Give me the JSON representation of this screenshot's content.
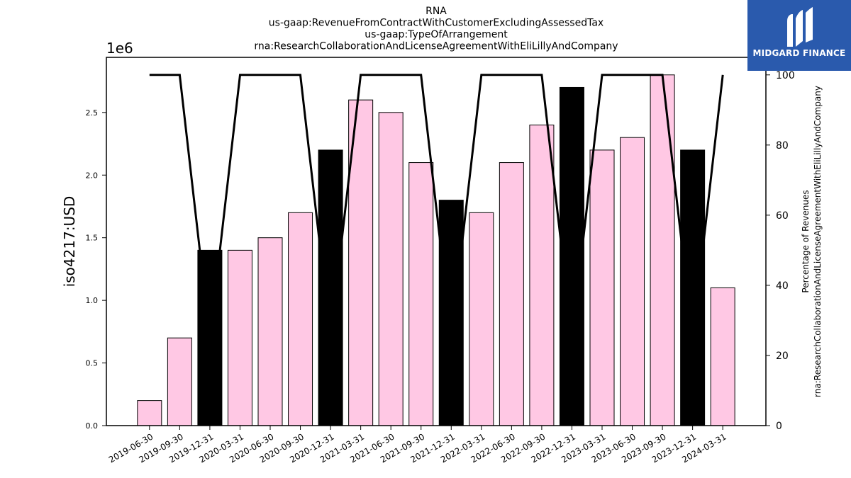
{
  "logo": {
    "text": "MIDGARD FINANCE"
  },
  "chart_data": {
    "type": "bar",
    "title_lines": [
      "RNA",
      "us-gaap:RevenueFromContractWithCustomerExcludingAssessedTax",
      "us-gaap:TypeOfArrangement",
      "rna:ResearchCollaborationAndLicenseAgreementWithEliLillyAndCompany"
    ],
    "ylabel": "iso4217:USD",
    "y_multiplier": "1e6",
    "y2label_lines": [
      "Percentage of Revenues",
      "rna:ResearchCollaborationAndLicenseAgreementWithEliLillyAndCompany"
    ],
    "ylim": [
      0,
      2.94
    ],
    "y_ticks": [
      "0.0",
      "0.5",
      "1.0",
      "1.5",
      "2.0",
      "2.5"
    ],
    "y_tick_values": [
      0,
      0.5,
      1.0,
      1.5,
      2.0,
      2.5
    ],
    "y2lim": [
      0,
      105
    ],
    "y2_ticks": [
      "0",
      "20",
      "40",
      "60",
      "80",
      "100"
    ],
    "y2_tick_values": [
      0,
      20,
      40,
      60,
      80,
      100
    ],
    "categories": [
      "2019-06-30",
      "2019-09-30",
      "2019-12-31",
      "2020-03-31",
      "2020-06-30",
      "2020-09-30",
      "2020-12-31",
      "2021-03-31",
      "2021-06-30",
      "2021-09-30",
      "2021-12-31",
      "2022-03-31",
      "2022-06-30",
      "2022-09-30",
      "2022-12-31",
      "2023-03-31",
      "2023-06-30",
      "2023-09-30",
      "2023-12-31",
      "2024-03-31"
    ],
    "series": [
      {
        "type": "bar",
        "values": [
          0.2,
          0.7,
          1.4,
          1.4,
          1.5,
          1.7,
          2.2,
          2.6,
          2.5,
          2.1,
          1.8,
          1.7,
          2.1,
          2.4,
          2.7,
          2.2,
          2.3,
          2.8,
          2.2,
          1.1
        ],
        "colors": [
          "#ffc8e4",
          "#ffc8e4",
          "#000000",
          "#ffc8e4",
          "#ffc8e4",
          "#ffc8e4",
          "#000000",
          "#ffc8e4",
          "#ffc8e4",
          "#ffc8e4",
          "#000000",
          "#ffc8e4",
          "#ffc8e4",
          "#ffc8e4",
          "#000000",
          "#ffc8e4",
          "#ffc8e4",
          "#ffc8e4",
          "#000000",
          "#ffc8e4"
        ]
      },
      {
        "type": "line",
        "axis": "right",
        "values": [
          100,
          100,
          25,
          100,
          100,
          100,
          25,
          100,
          100,
          100,
          25,
          100,
          100,
          100,
          25,
          100,
          100,
          100,
          25,
          100
        ],
        "color": "#000000"
      }
    ]
  }
}
